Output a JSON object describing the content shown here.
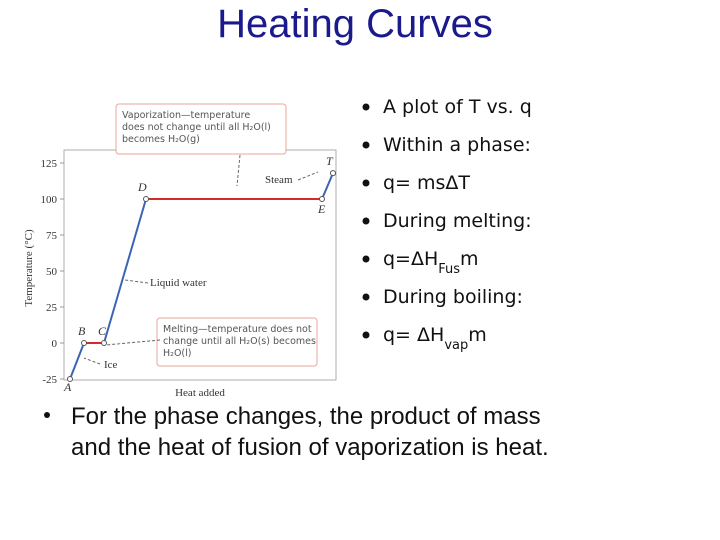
{
  "title": "Heating Curves",
  "chart_data": {
    "type": "line",
    "y_label": "Temperature (°C)",
    "x_label": "Heat added",
    "categories": [
      "A",
      "B",
      "C",
      "D",
      "E",
      "T"
    ],
    "values": [
      -25,
      0,
      0,
      100,
      100,
      118
    ],
    "segment_colors": [
      "#3b64b8",
      "#d62b2b",
      "#3b64b8",
      "#d62b2b",
      "#3b64b8"
    ],
    "ylim": [
      -25,
      125
    ],
    "yticks": [
      -25,
      0,
      25,
      50,
      75,
      100,
      125
    ],
    "annotations": [
      {
        "lines": [
          "Vaporization—temperature",
          "does not change until all H₂O(l)",
          "becomes H₂O(g)"
        ]
      },
      {
        "lines": [
          "Steam"
        ]
      },
      {
        "lines": [
          "Liquid water"
        ]
      },
      {
        "lines": [
          "Ice"
        ]
      },
      {
        "lines": [
          "Melting—temperature does not",
          "change until all H₂O(s) becomes",
          "H₂O(l)"
        ]
      }
    ]
  },
  "bullets": [
    [
      "A plot of T vs. q"
    ],
    [
      "Within a phase:"
    ],
    [
      "q= msΔT"
    ],
    [
      "During melting:"
    ],
    [
      "q=ΔH",
      "Fus",
      "m"
    ],
    [
      "During boiling:"
    ],
    [
      "q= ΔH",
      "vap",
      "m"
    ]
  ],
  "footer": [
    "For the phase changes, the product of mass",
    "and the heat of fusion of vaporization is heat."
  ]
}
